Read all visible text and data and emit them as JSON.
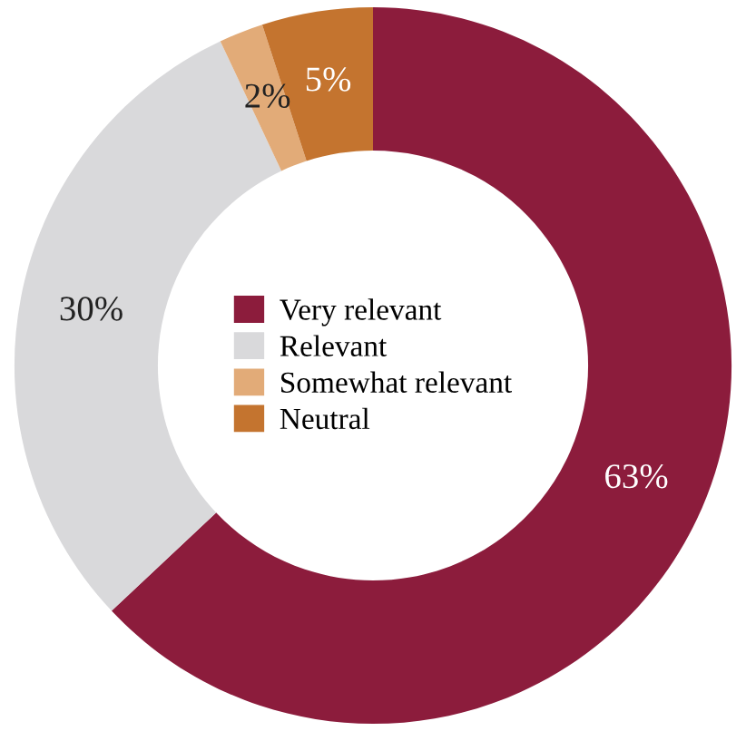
{
  "chart_data": {
    "type": "donut",
    "categories": [
      "Very relevant",
      "Relevant",
      "Somewhat relevant",
      "Neutral"
    ],
    "values": [
      63,
      30,
      2,
      5
    ],
    "colors": [
      "#8c1c3c",
      "#d9d9db",
      "#e2ab78",
      "#c4742f"
    ],
    "value_labels": [
      "63%",
      "30%",
      "2%",
      "5%"
    ],
    "legend": "center"
  }
}
